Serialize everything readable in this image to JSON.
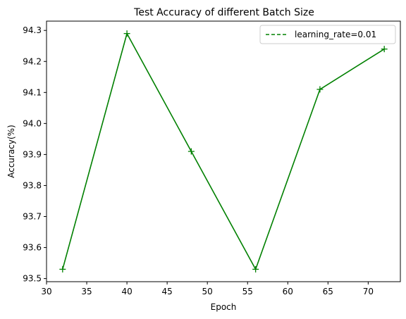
{
  "chart_data": {
    "type": "line",
    "title": "Test Accuracy of different Batch Size",
    "xlabel": "Epoch",
    "ylabel": "Accuracy(%)",
    "xlim": [
      30,
      74
    ],
    "ylim": [
      93.49,
      94.33
    ],
    "x_ticks": [
      30,
      35,
      40,
      45,
      50,
      55,
      60,
      65,
      70
    ],
    "y_ticks": [
      93.5,
      93.6,
      93.7,
      93.8,
      93.9,
      94.0,
      94.1,
      94.2,
      94.3
    ],
    "x_tick_labels": [
      "30",
      "35",
      "40",
      "45",
      "50",
      "55",
      "60",
      "65",
      "70"
    ],
    "y_tick_labels": [
      "93.5",
      "93.6",
      "93.7",
      "93.8",
      "93.9",
      "94.0",
      "94.1",
      "94.2",
      "94.3"
    ],
    "grid": false,
    "legend_position": "top-right",
    "series": [
      {
        "name": "learning_rate=0.01",
        "color": "#008000",
        "marker": "+",
        "line_style": "dashed",
        "x": [
          32,
          40,
          48,
          56,
          64,
          72
        ],
        "y": [
          93.53,
          94.29,
          93.91,
          93.53,
          94.11,
          94.24
        ]
      }
    ]
  }
}
